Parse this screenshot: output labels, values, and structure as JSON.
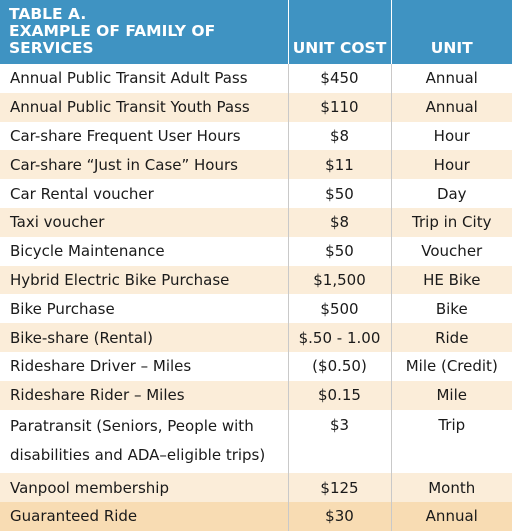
{
  "header": {
    "title_line1": "TABLE A.",
    "title_line2": "EXAMPLE OF FAMILY OF SERVICES",
    "col_cost": "UNIT COST",
    "col_unit": "UNIT"
  },
  "rows": [
    {
      "service": "Annual Public Transit Adult Pass",
      "cost": "$450",
      "unit": "Annual"
    },
    {
      "service": "Annual Public Transit Youth Pass",
      "cost": "$110",
      "unit": "Annual"
    },
    {
      "service": "Car-share Frequent User Hours",
      "cost": "$8",
      "unit": "Hour"
    },
    {
      "service": "Car-share “Just in Case” Hours",
      "cost": "$11",
      "unit": "Hour"
    },
    {
      "service": "Car Rental voucher",
      "cost": "$50",
      "unit": "Day"
    },
    {
      "service": "Taxi voucher",
      "cost": "$8",
      "unit": "Trip in City"
    },
    {
      "service": "Bicycle Maintenance",
      "cost": "$50",
      "unit": "Voucher"
    },
    {
      "service": "Hybrid Electric Bike Purchase",
      "cost": "$1,500",
      "unit": "HE Bike"
    },
    {
      "service": "Bike Purchase",
      "cost": "$500",
      "unit": "Bike"
    },
    {
      "service": "Bike-share (Rental)",
      "cost": "$.50 - 1.00",
      "unit": "Ride"
    },
    {
      "service": "Rideshare Driver – Miles",
      "cost": "($0.50)",
      "unit": "Mile (Credit)"
    },
    {
      "service": "Rideshare Rider – Miles",
      "cost": "$0.15",
      "unit": "Mile"
    },
    {
      "service_line1": "Paratransit (Seniors, People with",
      "service_line2": "disabilities and ADA–eligible trips)",
      "cost": "$3",
      "unit": "Trip"
    },
    {
      "service": "Vanpool membership",
      "cost": "$125",
      "unit": "Month"
    },
    {
      "service": "Guaranteed Ride",
      "cost": "$30",
      "unit": "Annual"
    }
  ]
}
